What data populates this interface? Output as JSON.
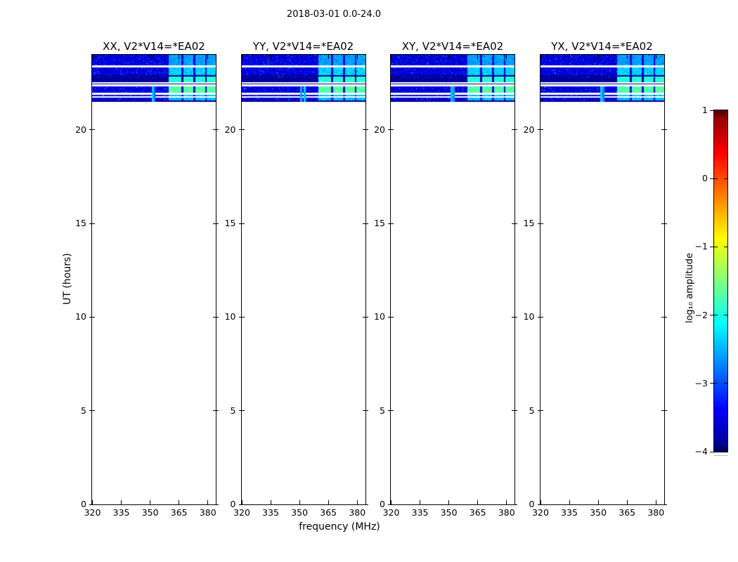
{
  "figure": {
    "title": "2018-03-01 0.0-24.0",
    "background_color": "#ffffff",
    "text_color": "#000000"
  },
  "chart_data": {
    "type": "heatmap",
    "subtype": "dynamic spectrum spectrogram, 4 correlation panels (time vs frequency)",
    "title": "2018-03-01 0.0-24.0",
    "xlabel": "frequency (MHz)",
    "ylabel": "UT (hours)",
    "xlim": [
      319.8,
      384.1
    ],
    "ylim": [
      0,
      24
    ],
    "x_ticks": [
      320,
      335,
      350,
      365,
      380
    ],
    "x_tick_labels": [
      "320",
      "335",
      "350",
      "365",
      "380"
    ],
    "y_ticks": [
      0,
      5,
      10,
      15,
      20
    ],
    "y_tick_labels": [
      "0",
      "5",
      "10",
      "15",
      "20"
    ],
    "grid": false,
    "panels": [
      {
        "label": "XX, V2*V14=*EA02",
        "seed": 11,
        "narrowband_rfi": [
          {
            "freq_mhz": 351.3,
            "t": [
              21.5,
              22.33
            ],
            "v": -2.35
          },
          {
            "freq_mhz": 352.3,
            "t": [
              21.5,
              22.33
            ],
            "v": -2.9
          }
        ]
      },
      {
        "label": "YY, V2*V14=*EA02",
        "seed": 47,
        "narrowband_rfi": [
          {
            "freq_mhz": 350.8,
            "t": [
              21.5,
              22.33
            ],
            "v": -2.5
          },
          {
            "freq_mhz": 352.4,
            "t": [
              21.5,
              22.33
            ],
            "v": -2.4
          }
        ]
      },
      {
        "label": "XY, V2*V14=*EA02",
        "seed": 83,
        "narrowband_rfi": [
          {
            "freq_mhz": 351.5,
            "t": [
              21.5,
              22.33
            ],
            "v": -2.45
          },
          {
            "freq_mhz": 352.5,
            "t": [
              21.5,
              22.33
            ],
            "v": -2.6
          }
        ]
      },
      {
        "label": "YX, V2*V14=*EA02",
        "seed": 129,
        "narrowband_rfi": [
          {
            "freq_mhz": 351.5,
            "t": [
              21.5,
              22.33
            ],
            "v": -2.3
          },
          {
            "freq_mhz": 352.4,
            "t": [
              21.5,
              22.33
            ],
            "v": -2.7
          }
        ]
      }
    ],
    "colorbar": {
      "label": "log₁₀ amplitude",
      "colormap": "jet",
      "vmin": -4,
      "vmax": 1,
      "ticks": [
        1,
        0,
        -1,
        -2,
        -3,
        -4
      ],
      "tick_labels": [
        "1",
        "0",
        "−1",
        "−2",
        "−3",
        "−4"
      ]
    },
    "data_time_range_ut_hours": [
      21.5,
      24.0
    ],
    "features": {
      "background_noise": {
        "mean_log10_amp": -3.55,
        "spread": 0.5,
        "speckle_prob": 0.04,
        "bright_dot_prob": 0.004
      },
      "flagged_white_rows_ut": [
        [
          23.33,
          23.45
        ],
        [
          22.46,
          22.545
        ],
        [
          22.33,
          22.42
        ],
        [
          21.86,
          21.97
        ],
        [
          21.73,
          21.77
        ]
      ],
      "dark_rows_ut": [
        [
          22.82,
          22.9
        ],
        [
          22.42,
          22.46
        ],
        [
          21.5,
          21.58
        ]
      ],
      "dark_band_ut": [
        22.545,
        22.8
      ],
      "dark_level_log10_amp": -3.95,
      "broadband_rfi_blob_bands_mhz": [
        [
          359.5,
          366.3
        ],
        [
          367.3,
          372.5
        ],
        [
          373.5,
          378.5
        ],
        [
          379.5,
          384.2
        ]
      ],
      "blob_intensity_by_time": [
        {
          "t": [
            23.45,
            24.0
          ],
          "v": -2.6
        },
        {
          "t": [
            22.9,
            23.33
          ],
          "v": -2.35
        },
        {
          "t": [
            22.545,
            22.9
          ],
          "v": -1.95
        },
        {
          "t": [
            21.97,
            22.33
          ],
          "v": -1.7
        },
        {
          "t": [
            21.58,
            21.86
          ],
          "v": -2.45
        }
      ]
    }
  }
}
